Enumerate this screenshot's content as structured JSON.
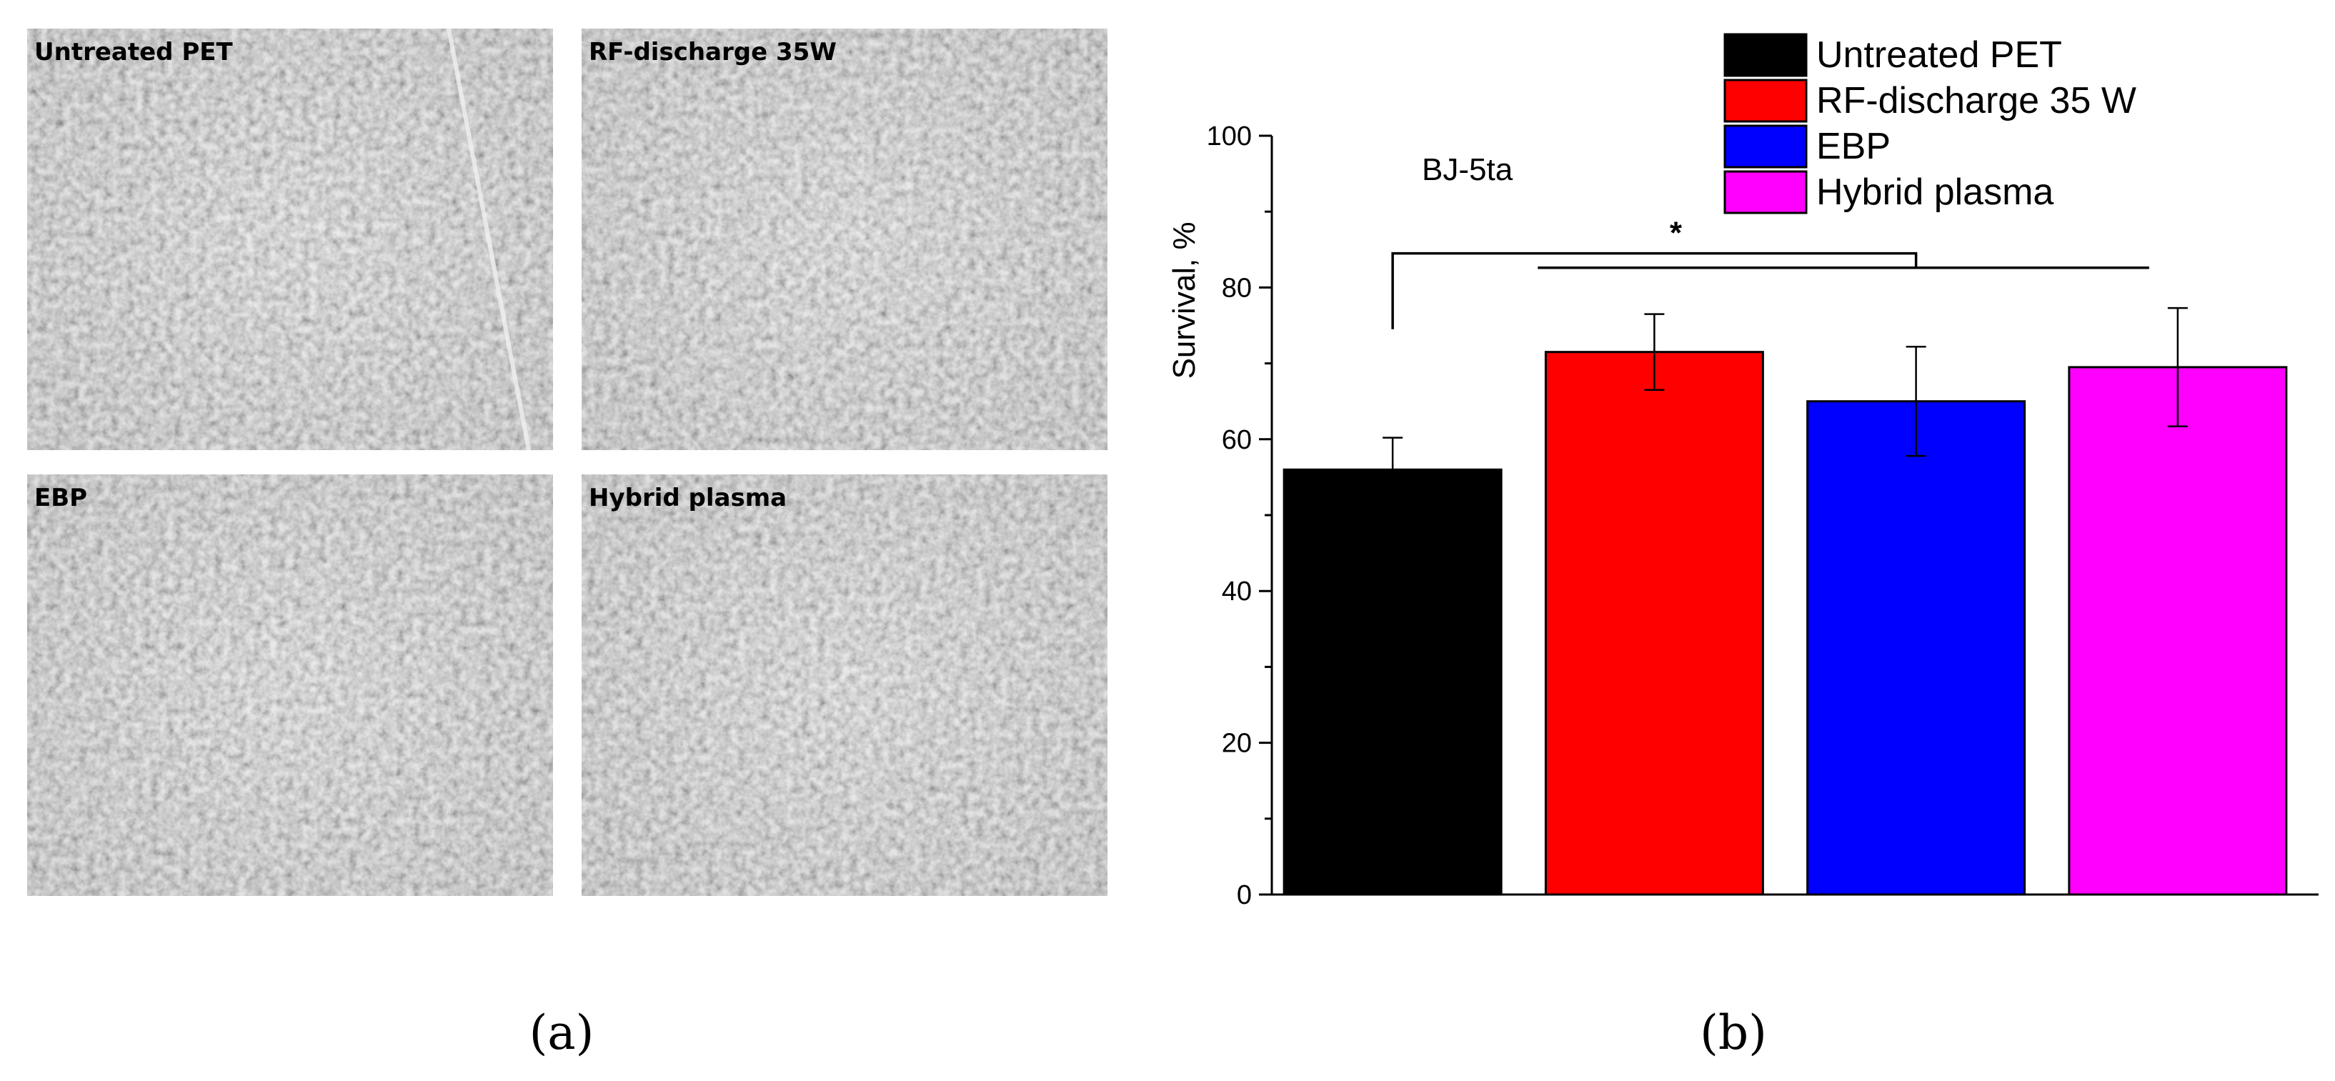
{
  "panels": {
    "a_label": "(a)",
    "b_label": "(b)"
  },
  "micrographs": [
    {
      "label": "Untreated PET"
    },
    {
      "label": "RF-discharge 35W"
    },
    {
      "label": "EBP"
    },
    {
      "label": "Hybrid plasma"
    }
  ],
  "colors": {
    "untreated": "#000000",
    "rf": "#ff0000",
    "ebp": "#0000ff",
    "hybrid": "#ff00ff"
  },
  "chart_data": {
    "type": "bar",
    "categories": [
      "Untreated PET",
      "RF-discharge 35 W",
      "EBP",
      "Hybrid plasma"
    ],
    "values": [
      56,
      71.5,
      65,
      69.5
    ],
    "errors": [
      4.2,
      5.0,
      7.2,
      7.8
    ],
    "colors": [
      "#000000",
      "#ff0000",
      "#0000ff",
      "#ff00ff"
    ],
    "ylabel": "Survival, %",
    "ylim": [
      0,
      100
    ],
    "yticks": [
      0,
      20,
      40,
      60,
      80,
      100
    ],
    "annotation": "BJ-5ta",
    "significance": "*",
    "legend_position": "top-right",
    "legend": [
      {
        "label": "Untreated PET",
        "color": "#000000"
      },
      {
        "label": "RF-discharge 35 W",
        "color": "#ff0000"
      },
      {
        "label": "EBP",
        "color": "#0000ff"
      },
      {
        "label": "Hybrid plasma",
        "color": "#ff00ff"
      }
    ]
  }
}
